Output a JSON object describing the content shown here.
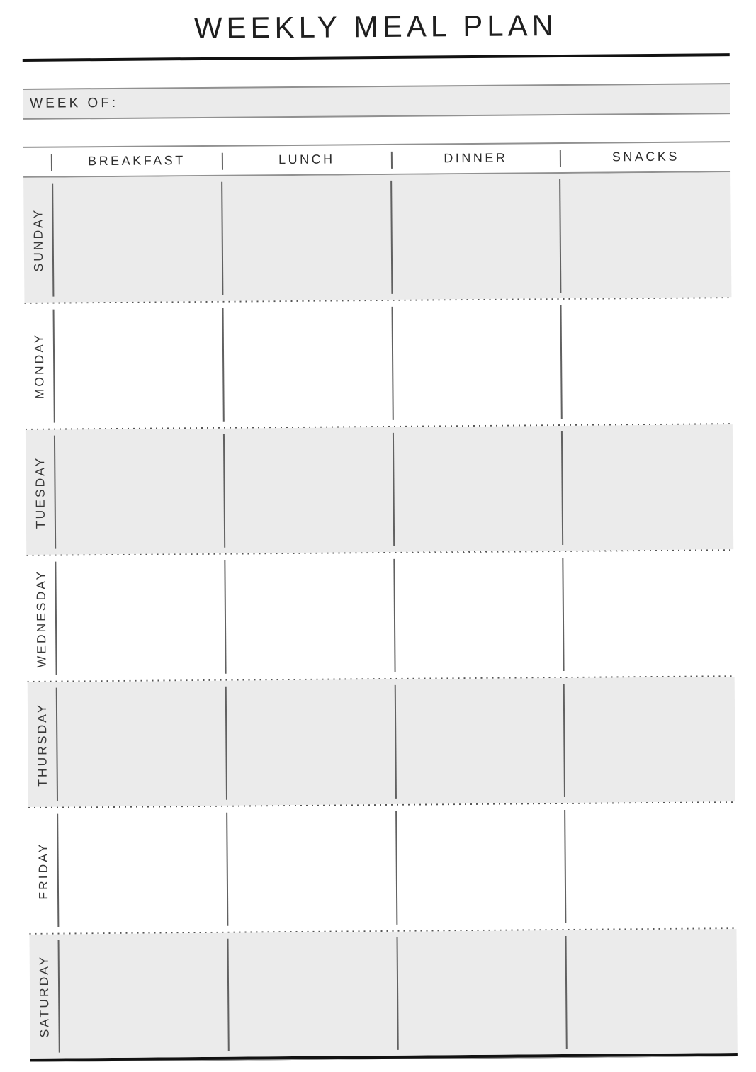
{
  "title": "WEEKLY MEAL PLAN",
  "week_of": {
    "label": "WEEK OF:",
    "value": ""
  },
  "table": {
    "columns": [
      "BREAKFAST",
      "LUNCH",
      "DINNER",
      "SNACKS"
    ],
    "days": [
      "SUNDAY",
      "MONDAY",
      "TUESDAY",
      "WEDNESDAY",
      "THURSDAY",
      "FRIDAY",
      "SATURDAY"
    ],
    "cell_values": []
  },
  "colors": {
    "row_shade": "#ebebeb",
    "rule": "#121212",
    "divider": "#616161",
    "border": "#919191",
    "dot": "#555555",
    "text": "#2e2e2e"
  }
}
